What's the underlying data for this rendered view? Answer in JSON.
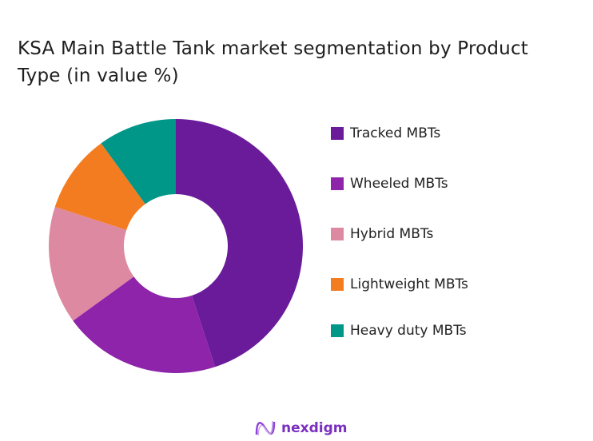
{
  "chart_data": {
    "type": "pie",
    "donut": true,
    "title": "KSA Main Battle Tank market segmentation by Product Type (in value %)",
    "categories": [
      "Tracked MBTs",
      "Wheeled MBTs",
      "Hybrid MBTs",
      "Lightweight MBTs",
      "Heavy duty MBTs"
    ],
    "values": [
      45,
      20,
      15,
      10,
      10
    ],
    "colors": [
      "#6a1b9a",
      "#8e24aa",
      "#de89a2",
      "#f47c20",
      "#009688"
    ],
    "legend": "right"
  },
  "logo": {
    "text": "nexdigm"
  }
}
